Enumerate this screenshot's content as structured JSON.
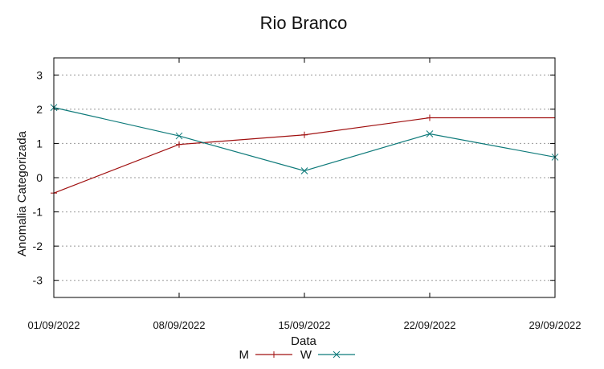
{
  "chart_data": {
    "type": "line",
    "title": "Rio Branco",
    "xlabel": "Data",
    "ylabel": "Anomalia Categorizada",
    "categories": [
      "01/09/2022",
      "08/09/2022",
      "15/09/2022",
      "22/09/2022",
      "29/09/2022"
    ],
    "ylim": [
      -3.5,
      3.5
    ],
    "yticks": [
      "3",
      "2",
      "1",
      "0",
      "-1",
      "-2",
      "-3"
    ],
    "ytick_values": [
      3,
      2,
      1,
      0,
      -1,
      -2,
      -3
    ],
    "grid": "horizontal dashed",
    "legend_position": "bottom",
    "series": [
      {
        "name": "M",
        "color": "#a01010",
        "marker": "plus",
        "values": [
          -0.45,
          0.97,
          1.25,
          1.75,
          1.75
        ]
      },
      {
        "name": "W",
        "color": "#0e7a7a",
        "marker": "cross",
        "values": [
          2.05,
          1.22,
          0.2,
          1.28,
          0.6
        ]
      }
    ]
  }
}
